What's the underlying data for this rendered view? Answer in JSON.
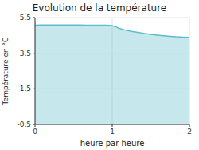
{
  "chart_data": {
    "type": "area",
    "title": "Evolution de la température",
    "xlabel": "heure par heure",
    "ylabel": "Température en °C",
    "color": "#5bbccc",
    "x": [
      0.0,
      0.08,
      0.16,
      0.25,
      0.33,
      0.42,
      0.5,
      0.58,
      0.67,
      0.75,
      0.83,
      0.92,
      1.0,
      1.05,
      1.1,
      1.17,
      1.25,
      1.33,
      1.42,
      1.5,
      1.58,
      1.67,
      1.75,
      1.83,
      1.92,
      2.0
    ],
    "values": [
      5.08,
      5.09,
      5.09,
      5.09,
      5.09,
      5.09,
      5.09,
      5.09,
      5.08,
      5.08,
      5.08,
      5.07,
      5.05,
      4.98,
      4.88,
      4.8,
      4.73,
      4.67,
      4.61,
      4.56,
      4.52,
      4.48,
      4.45,
      4.42,
      4.4,
      4.38
    ],
    "xlim": [
      0,
      2
    ],
    "ylim": [
      -0.5,
      5.5
    ],
    "xticks": [
      0,
      1,
      2
    ],
    "yticks": [
      -0.5,
      1.5,
      3.5,
      5.5
    ],
    "grid": true
  }
}
